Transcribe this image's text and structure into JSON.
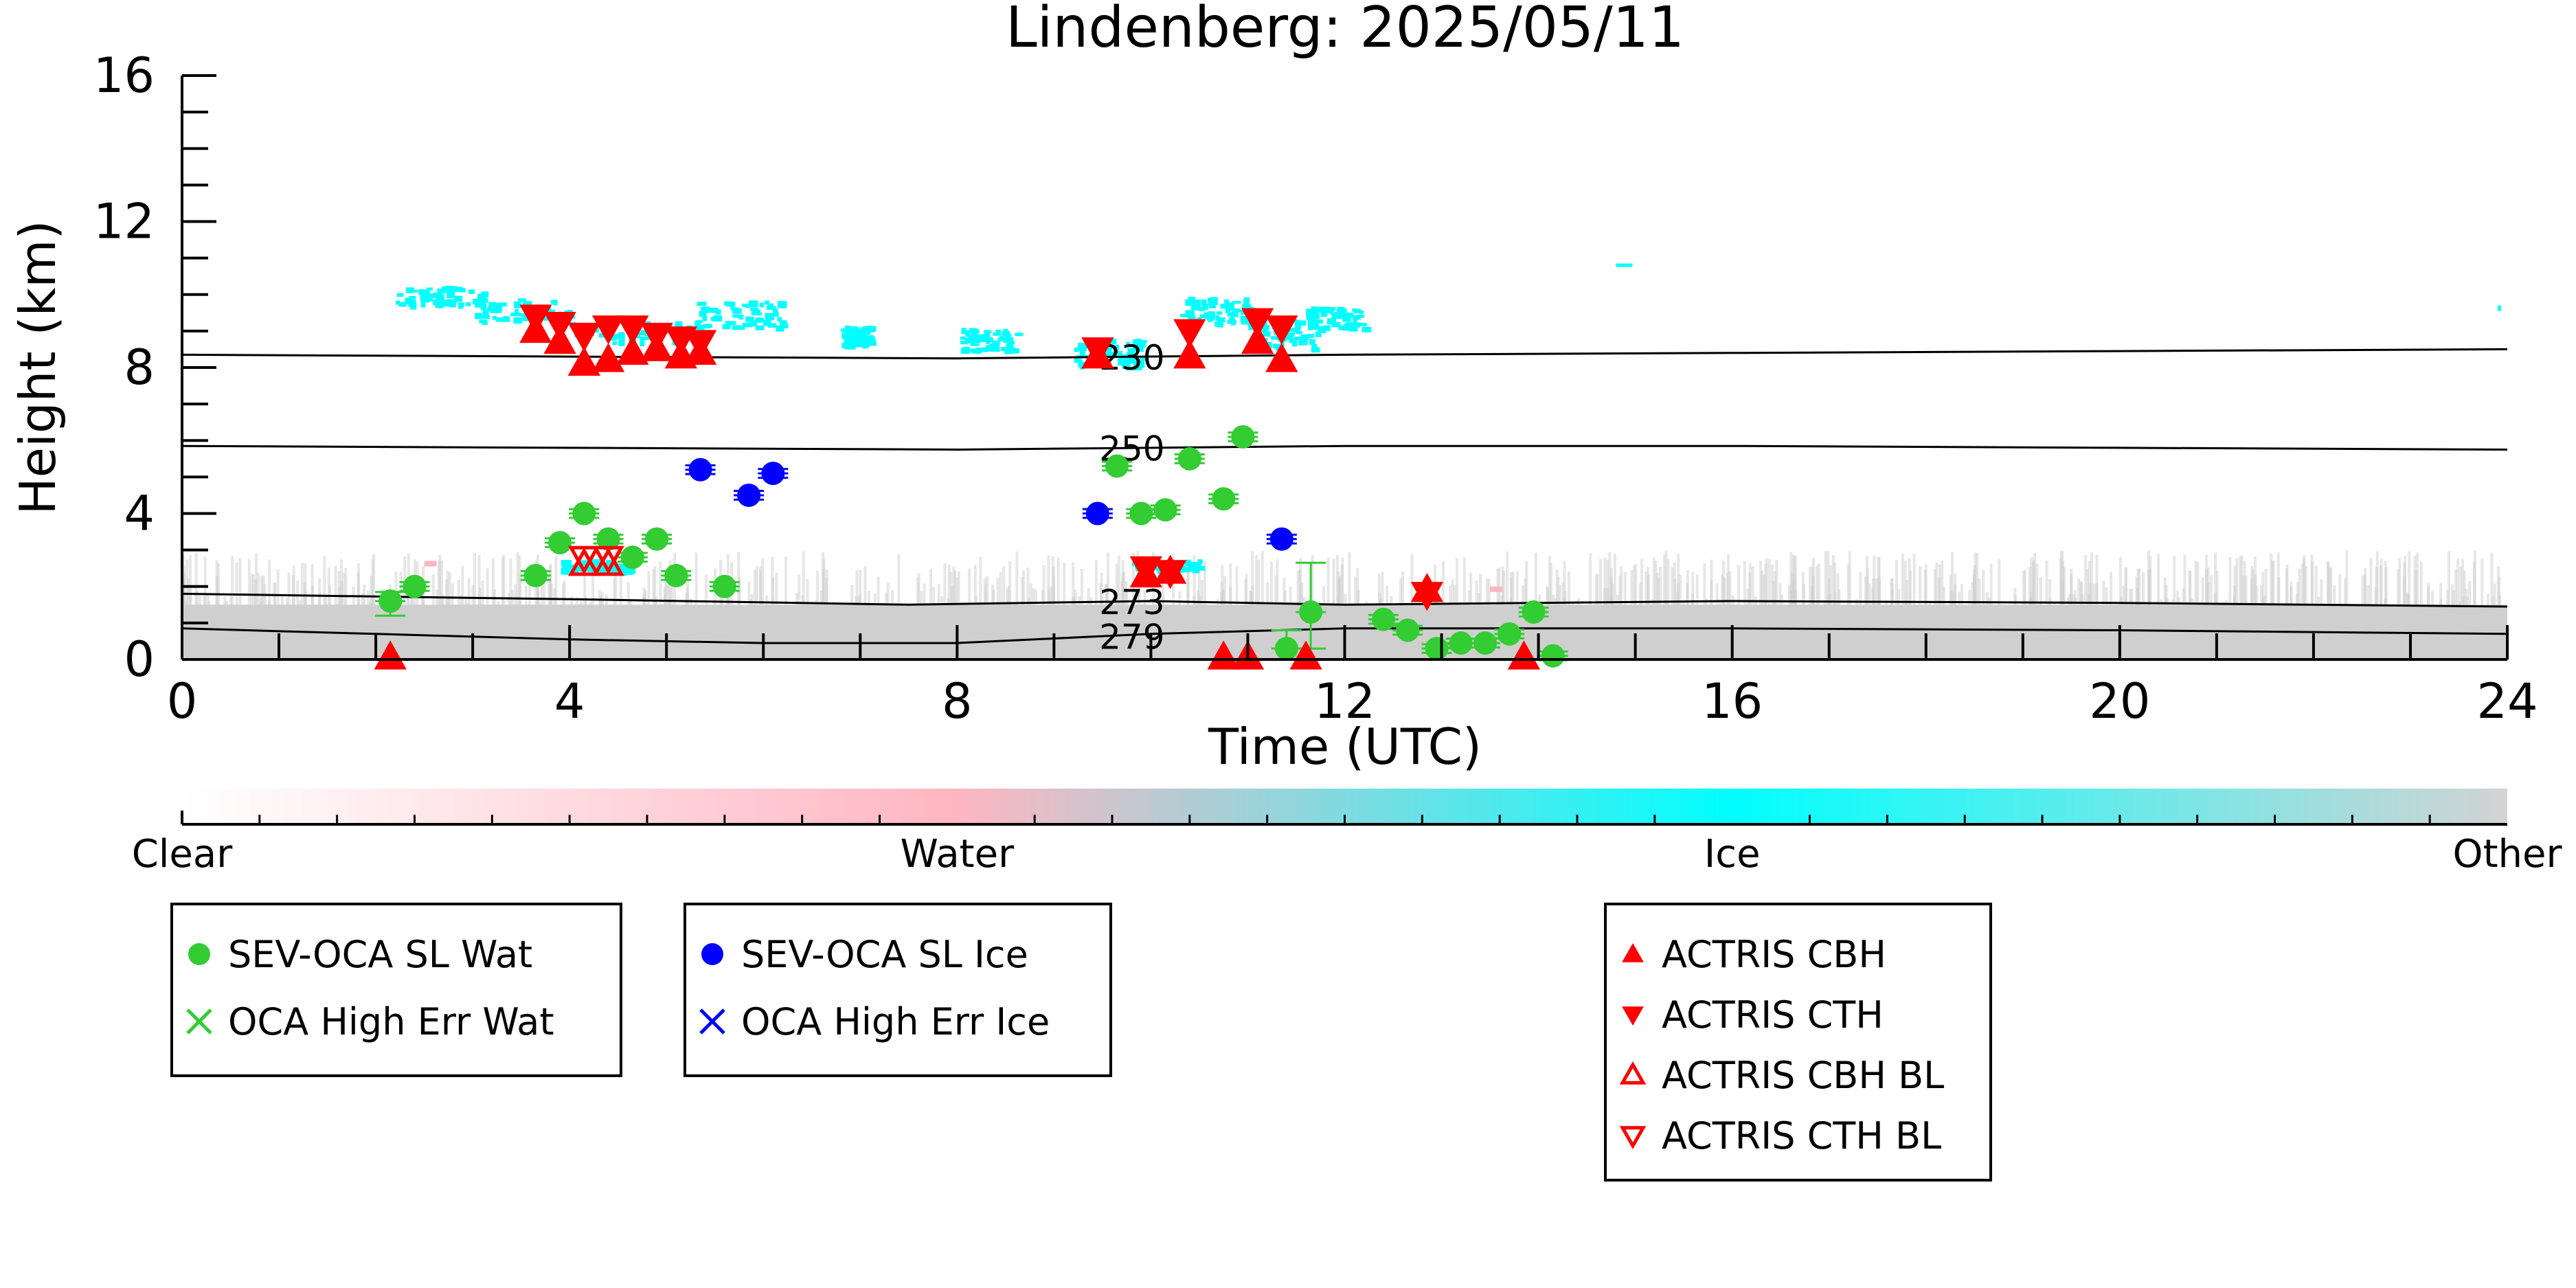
{
  "chart_data": {
    "type": "scatter",
    "title": "Lindenberg: 2025/05/11",
    "xlabel": "Time (UTC)",
    "ylabel": "Height (km)",
    "xlim": [
      0,
      24
    ],
    "ylim": [
      0,
      16
    ],
    "xticks": [
      "0",
      "4",
      "8",
      "12",
      "16",
      "20",
      "24"
    ],
    "yticks": [
      "0",
      "4",
      "8",
      "12",
      "16"
    ],
    "contours": [
      {
        "label": "230",
        "label_x": 9.45,
        "x": [
          0,
          4,
          8,
          12,
          16,
          20,
          24
        ],
        "y": [
          8.35,
          8.3,
          8.25,
          8.35,
          8.4,
          8.45,
          8.5
        ]
      },
      {
        "label": "250",
        "label_x": 9.45,
        "x": [
          0,
          4,
          8,
          12,
          16,
          20,
          24
        ],
        "y": [
          5.85,
          5.8,
          5.75,
          5.85,
          5.85,
          5.8,
          5.75
        ]
      },
      {
        "label": "273",
        "label_x": 9.45,
        "x": [
          0,
          4,
          7.5,
          10,
          12,
          16,
          20,
          24
        ],
        "y": [
          1.8,
          1.65,
          1.5,
          1.6,
          1.5,
          1.6,
          1.55,
          1.45
        ]
      },
      {
        "label": "279",
        "label_x": 9.45,
        "x": [
          0,
          2,
          4,
          6,
          8,
          10,
          12,
          16,
          20,
          24
        ],
        "y": [
          0.85,
          0.7,
          0.55,
          0.45,
          0.45,
          0.7,
          0.85,
          0.85,
          0.8,
          0.7
        ]
      }
    ],
    "classification_colorbar": {
      "labels": [
        "Clear",
        "Water",
        "Ice",
        "Other"
      ],
      "colors": [
        "#ffffff",
        "#ffb6c1",
        "#00ffff",
        "#d3d3d3"
      ]
    },
    "series": [
      {
        "name": "SEV-OCA SL Wat",
        "marker": "circle",
        "color": "#33cc33",
        "points": [
          [
            2.15,
            1.6
          ],
          [
            2.4,
            2.0
          ],
          [
            3.65,
            2.3
          ],
          [
            3.9,
            3.2
          ],
          [
            4.15,
            4.0
          ],
          [
            4.4,
            3.3
          ],
          [
            4.65,
            2.8
          ],
          [
            4.9,
            3.3
          ],
          [
            5.1,
            2.3
          ],
          [
            5.6,
            2.0
          ],
          [
            9.65,
            5.3
          ],
          [
            9.9,
            4.0
          ],
          [
            10.15,
            4.1
          ],
          [
            10.4,
            5.5
          ],
          [
            10.75,
            4.4
          ],
          [
            10.95,
            6.1
          ],
          [
            11.4,
            0.3
          ],
          [
            11.65,
            1.3
          ],
          [
            12.4,
            1.1
          ],
          [
            12.65,
            0.8
          ],
          [
            12.95,
            0.3
          ],
          [
            13.2,
            0.45
          ],
          [
            13.45,
            0.45
          ],
          [
            13.7,
            0.7
          ],
          [
            13.95,
            1.3
          ],
          [
            14.15,
            0.1
          ]
        ]
      },
      {
        "name": "OCA High Err Wat",
        "marker": "x",
        "color": "#33cc33",
        "points": []
      },
      {
        "name": "SEV-OCA SL Ice",
        "marker": "circle",
        "color": "#0000ff",
        "points": [
          [
            5.35,
            5.2
          ],
          [
            5.85,
            4.5
          ],
          [
            6.1,
            5.1
          ],
          [
            9.45,
            4.0
          ],
          [
            11.35,
            3.3
          ]
        ]
      },
      {
        "name": "OCA High Err Ice",
        "marker": "x",
        "color": "#0000ff",
        "points": []
      },
      {
        "name": "ACTRIS CBH",
        "marker": "triangle-up",
        "color": "#ff0000",
        "points": [
          [
            2.15,
            0.05
          ],
          [
            3.65,
            9.0
          ],
          [
            3.9,
            8.7
          ],
          [
            4.15,
            8.1
          ],
          [
            4.4,
            8.2
          ],
          [
            4.65,
            8.4
          ],
          [
            4.9,
            8.5
          ],
          [
            5.15,
            8.3
          ],
          [
            5.35,
            8.4
          ],
          [
            9.45,
            8.3
          ],
          [
            9.95,
            2.3
          ],
          [
            10.2,
            2.4
          ],
          [
            10.4,
            8.3
          ],
          [
            11.1,
            8.7
          ],
          [
            11.35,
            8.2
          ],
          [
            12.85,
            1.9
          ],
          [
            10.75,
            0.05
          ],
          [
            11.0,
            0.05
          ],
          [
            11.6,
            0.05
          ],
          [
            13.85,
            0.05
          ]
        ]
      },
      {
        "name": "ACTRIS CTH",
        "marker": "triangle-down",
        "color": "#ff0000",
        "points": [
          [
            3.65,
            9.4
          ],
          [
            3.9,
            9.2
          ],
          [
            4.15,
            8.9
          ],
          [
            4.4,
            9.1
          ],
          [
            4.65,
            9.1
          ],
          [
            4.9,
            8.9
          ],
          [
            5.15,
            8.8
          ],
          [
            5.35,
            8.7
          ],
          [
            9.45,
            8.5
          ],
          [
            9.95,
            2.5
          ],
          [
            10.2,
            2.4
          ],
          [
            10.4,
            9.0
          ],
          [
            11.1,
            9.3
          ],
          [
            11.35,
            9.1
          ],
          [
            12.85,
            1.8
          ]
        ]
      },
      {
        "name": "ACTRIS CBH BL",
        "marker": "triangle-up-open",
        "color": "#ff0000",
        "points": [
          [
            4.15,
            2.6
          ],
          [
            4.4,
            2.6
          ]
        ]
      },
      {
        "name": "ACTRIS CTH BL",
        "marker": "triangle-down-open",
        "color": "#ff0000",
        "points": [
          [
            4.15,
            2.8
          ],
          [
            4.4,
            2.8
          ]
        ]
      }
    ],
    "error_bars": {
      "color_wat": "#33cc33",
      "color_ice": "#0000ff"
    },
    "legend": [
      {
        "box": 1,
        "entries": [
          "SEV-OCA SL Wat",
          "OCA High Err Wat"
        ]
      },
      {
        "box": 2,
        "entries": [
          "SEV-OCA SL Ice",
          "OCA High Err Ice"
        ]
      },
      {
        "box": 3,
        "entries": [
          "ACTRIS CBH",
          "ACTRIS CTH",
          "ACTRIS CBH BL",
          "ACTRIS CTH BL"
        ]
      }
    ],
    "legend_placement": "bottom"
  }
}
